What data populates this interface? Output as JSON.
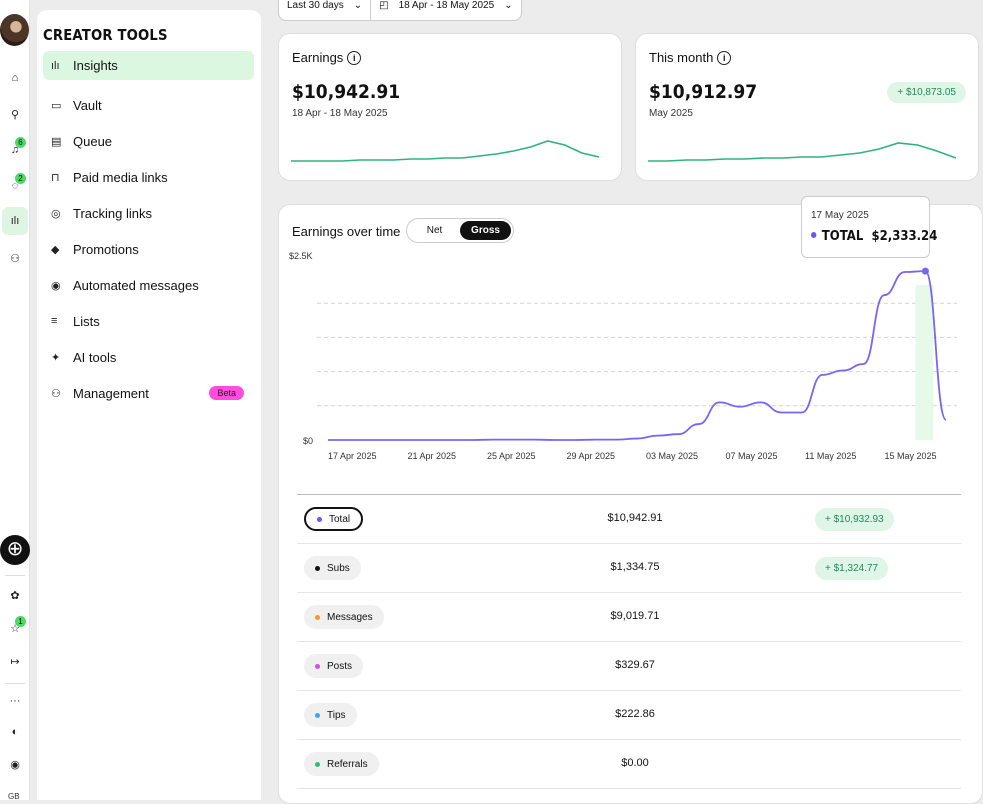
{
  "sidebar": {
    "title": "CREATOR TOOLS",
    "items": [
      {
        "label": "Insights",
        "icon": "bar-chart-icon",
        "glyph": "ılı"
      },
      {
        "label": "Vault",
        "icon": "vault-icon",
        "glyph": "▭"
      },
      {
        "label": "Queue",
        "icon": "queue-icon",
        "glyph": "▤"
      },
      {
        "label": "Paid media links",
        "icon": "lock-icon",
        "glyph": "⊓"
      },
      {
        "label": "Tracking links",
        "icon": "tracking-icon",
        "glyph": "◎"
      },
      {
        "label": "Promotions",
        "icon": "tag-icon",
        "glyph": "◆"
      },
      {
        "label": "Automated messages",
        "icon": "automated-icon",
        "glyph": "◉"
      },
      {
        "label": "Lists",
        "icon": "list-icon",
        "glyph": "≡"
      },
      {
        "label": "AI tools",
        "icon": "sparkle-icon",
        "glyph": "✦"
      },
      {
        "label": "Management",
        "icon": "people-icon",
        "glyph": "⚇",
        "badge": "Beta"
      }
    ]
  },
  "rail": {
    "badges": {
      "notifications": "6",
      "messages": "2",
      "favorites": "1"
    },
    "language": "GB"
  },
  "filters": {
    "range": "Last 30 days",
    "dates": "18 Apr - 18 May 2025"
  },
  "cards": {
    "earnings": {
      "title": "Earnings",
      "amount": "$10,942.91",
      "period": "18 Apr - 18 May 2025"
    },
    "this_month": {
      "title": "This month",
      "amount": "$10,912.97",
      "period": "May 2025",
      "delta": "+ $10,873.05"
    }
  },
  "chart": {
    "title": "Earnings over time",
    "toggle": {
      "net": "Net",
      "gross": "Gross",
      "selected": "Gross"
    },
    "tooltip": {
      "date": "17 May 2025",
      "label": "TOTAL",
      "value": "$2,333.24"
    }
  },
  "chart_data": {
    "type": "line",
    "ylabel_top": "$2.5K",
    "ylabel_bottom": "$0",
    "ylim": [
      0,
      2500
    ],
    "x_ticks": [
      "17 Apr 2025",
      "21 Apr 2025",
      "25 Apr 2025",
      "29 Apr 2025",
      "03 May 2025",
      "07 May 2025",
      "11 May 2025",
      "15 May 2025"
    ],
    "series": [
      {
        "color": "#7b63f5",
        "values": [
          0,
          0,
          0,
          0,
          0,
          0,
          0,
          0,
          5,
          5,
          5,
          0,
          0,
          5,
          5,
          20,
          60,
          80,
          220,
          520,
          460,
          520,
          380,
          380,
          900,
          960,
          1050,
          2000,
          2320,
          2333,
          280
        ]
      }
    ],
    "grid": "dashed"
  },
  "sparklines": {
    "earnings": [
      30,
      30,
      30,
      30,
      31,
      31,
      31,
      32,
      32,
      33,
      33,
      35,
      37,
      40,
      44,
      50,
      46,
      38,
      34
    ],
    "this_month": [
      30,
      30,
      31,
      31,
      32,
      32,
      33,
      33,
      34,
      34,
      36,
      38,
      42,
      48,
      46,
      40,
      33
    ]
  },
  "table": {
    "rows": [
      {
        "label": "Total",
        "value": "$10,942.91",
        "delta": "+ $10,932.93",
        "color": "#6b56f5",
        "selected": true
      },
      {
        "label": "Subs",
        "value": "$1,334.75",
        "delta": "+ $1,324.77",
        "color": "#111111"
      },
      {
        "label": "Messages",
        "value": "$9,019.71",
        "delta": "",
        "color": "#f59a2b"
      },
      {
        "label": "Posts",
        "value": "$329.67",
        "delta": "",
        "color": "#d24df0"
      },
      {
        "label": "Tips",
        "value": "$222.86",
        "delta": "",
        "color": "#3ea6f2"
      },
      {
        "label": "Referrals",
        "value": "$0.00",
        "delta": "",
        "color": "#2fbd7a"
      }
    ]
  }
}
